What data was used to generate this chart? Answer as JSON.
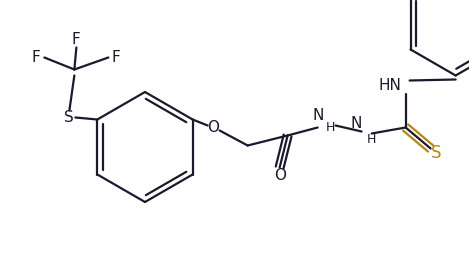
{
  "bg_color": "#ffffff",
  "bond_color": "#1a1a2e",
  "heteroatom_color": "#b8860b",
  "line_width": 1.6,
  "dbo": 0.008,
  "figsize": [
    4.69,
    2.77
  ],
  "dpi": 100,
  "xlim": [
    0,
    469
  ],
  "ylim": [
    0,
    277
  ]
}
